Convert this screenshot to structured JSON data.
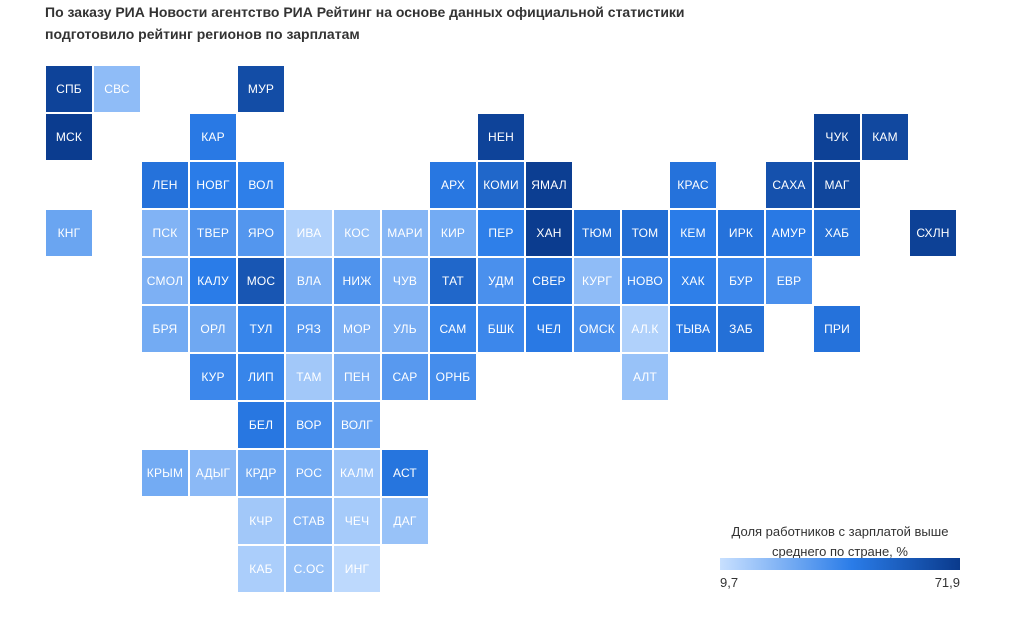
{
  "title": "По заказу РИА Новости агентство РИА Рейтинг на основе данных официальной статистики подготовило рейтинг регионов по зарплатам",
  "legend": {
    "title": "Доля работников с зарплатой выше среднего по стране, %",
    "min_label": "9,7",
    "max_label": "71,9",
    "min": 9.7,
    "max": 71.9,
    "color_low": "#c8e0ff",
    "color_mid": "#2a7ce8",
    "color_high": "#0a3a8c"
  },
  "regions": [
    {
      "label": "СПБ",
      "row": 0,
      "col": 0,
      "value": 68
    },
    {
      "label": "СВС",
      "row": 0,
      "col": 1,
      "value": 22
    },
    {
      "label": "МУР",
      "row": 0,
      "col": 4,
      "value": 64
    },
    {
      "label": "МСК",
      "row": 1,
      "col": 0,
      "value": 71
    },
    {
      "label": "КАР",
      "row": 1,
      "col": 3,
      "value": 45
    },
    {
      "label": "НЕН",
      "row": 1,
      "col": 9,
      "value": 68
    },
    {
      "label": "ЧУК",
      "row": 1,
      "col": 16,
      "value": 69
    },
    {
      "label": "КАМ",
      "row": 1,
      "col": 17,
      "value": 66
    },
    {
      "label": "ЛЕН",
      "row": 2,
      "col": 2,
      "value": 48
    },
    {
      "label": "НОВГ",
      "row": 2,
      "col": 3,
      "value": 44
    },
    {
      "label": "ВОЛ",
      "row": 2,
      "col": 4,
      "value": 43
    },
    {
      "label": "АРХ",
      "row": 2,
      "col": 8,
      "value": 46
    },
    {
      "label": "КОМИ",
      "row": 2,
      "col": 9,
      "value": 53
    },
    {
      "label": "ЯМАЛ",
      "row": 2,
      "col": 10,
      "value": 70
    },
    {
      "label": "КРАС",
      "row": 2,
      "col": 13,
      "value": 48
    },
    {
      "label": "САХА",
      "row": 2,
      "col": 15,
      "value": 62
    },
    {
      "label": "МАГ",
      "row": 2,
      "col": 16,
      "value": 67
    },
    {
      "label": "КНГ",
      "row": 3,
      "col": 0,
      "value": 30
    },
    {
      "label": "ПСК",
      "row": 3,
      "col": 2,
      "value": 25
    },
    {
      "label": "ТВЕР",
      "row": 3,
      "col": 3,
      "value": 36
    },
    {
      "label": "ЯРО",
      "row": 3,
      "col": 4,
      "value": 35
    },
    {
      "label": "ИВА",
      "row": 3,
      "col": 5,
      "value": 15
    },
    {
      "label": "КОС",
      "row": 3,
      "col": 6,
      "value": 20
    },
    {
      "label": "МАРИ",
      "row": 3,
      "col": 7,
      "value": 24
    },
    {
      "label": "КИР",
      "row": 3,
      "col": 8,
      "value": 28
    },
    {
      "label": "ПЕР",
      "row": 3,
      "col": 9,
      "value": 43
    },
    {
      "label": "ХАН",
      "row": 3,
      "col": 10,
      "value": 71
    },
    {
      "label": "ТЮМ",
      "row": 3,
      "col": 11,
      "value": 50
    },
    {
      "label": "ТОМ",
      "row": 3,
      "col": 12,
      "value": 50
    },
    {
      "label": "КЕМ",
      "row": 3,
      "col": 13,
      "value": 44
    },
    {
      "label": "ИРК",
      "row": 3,
      "col": 14,
      "value": 48
    },
    {
      "label": "АМУР",
      "row": 3,
      "col": 15,
      "value": 45
    },
    {
      "label": "ХАБ",
      "row": 3,
      "col": 16,
      "value": 49
    },
    {
      "label": "СХЛН",
      "row": 3,
      "col": 18,
      "value": 69
    },
    {
      "label": "СМОЛ",
      "row": 4,
      "col": 2,
      "value": 26
    },
    {
      "label": "КАЛУ",
      "row": 4,
      "col": 3,
      "value": 44
    },
    {
      "label": "МОС",
      "row": 4,
      "col": 4,
      "value": 60
    },
    {
      "label": "ВЛА",
      "row": 4,
      "col": 5,
      "value": 27
    },
    {
      "label": "НИЖ",
      "row": 4,
      "col": 6,
      "value": 36
    },
    {
      "label": "ЧУВ",
      "row": 4,
      "col": 7,
      "value": 25
    },
    {
      "label": "ТАТ",
      "row": 4,
      "col": 8,
      "value": 53
    },
    {
      "label": "УДМ",
      "row": 4,
      "col": 9,
      "value": 37
    },
    {
      "label": "СВЕР",
      "row": 4,
      "col": 10,
      "value": 48
    },
    {
      "label": "КУРГ",
      "row": 4,
      "col": 11,
      "value": 22
    },
    {
      "label": "НОВО",
      "row": 4,
      "col": 12,
      "value": 40
    },
    {
      "label": "ХАК",
      "row": 4,
      "col": 13,
      "value": 43
    },
    {
      "label": "БУР",
      "row": 4,
      "col": 14,
      "value": 40
    },
    {
      "label": "ЕВР",
      "row": 4,
      "col": 15,
      "value": 37
    },
    {
      "label": "БРЯ",
      "row": 5,
      "col": 2,
      "value": 28
    },
    {
      "label": "ОРЛ",
      "row": 5,
      "col": 3,
      "value": 29
    },
    {
      "label": "ТУЛ",
      "row": 5,
      "col": 4,
      "value": 41
    },
    {
      "label": "РЯЗ",
      "row": 5,
      "col": 5,
      "value": 35
    },
    {
      "label": "МОР",
      "row": 5,
      "col": 6,
      "value": 26
    },
    {
      "label": "УЛЬ",
      "row": 5,
      "col": 7,
      "value": 27
    },
    {
      "label": "САМ",
      "row": 5,
      "col": 8,
      "value": 41
    },
    {
      "label": "БШК",
      "row": 5,
      "col": 9,
      "value": 40
    },
    {
      "label": "ЧЕЛ",
      "row": 5,
      "col": 10,
      "value": 45
    },
    {
      "label": "ОМСК",
      "row": 5,
      "col": 11,
      "value": 37
    },
    {
      "label": "АЛ.К",
      "row": 5,
      "col": 12,
      "value": 15
    },
    {
      "label": "ТЫВА",
      "row": 5,
      "col": 13,
      "value": 46
    },
    {
      "label": "ЗАБ",
      "row": 5,
      "col": 14,
      "value": 49
    },
    {
      "label": "ПРИ",
      "row": 5,
      "col": 16,
      "value": 48
    },
    {
      "label": "КУР",
      "row": 6,
      "col": 3,
      "value": 40
    },
    {
      "label": "ЛИП",
      "row": 6,
      "col": 4,
      "value": 41
    },
    {
      "label": "ТАМ",
      "row": 6,
      "col": 5,
      "value": 18
    },
    {
      "label": "ПЕН",
      "row": 6,
      "col": 6,
      "value": 26
    },
    {
      "label": "САР",
      "row": 6,
      "col": 7,
      "value": 34
    },
    {
      "label": "ОРНБ",
      "row": 6,
      "col": 8,
      "value": 38
    },
    {
      "label": "АЛТ",
      "row": 6,
      "col": 12,
      "value": 20
    },
    {
      "label": "БЕЛ",
      "row": 7,
      "col": 4,
      "value": 46
    },
    {
      "label": "ВОР",
      "row": 7,
      "col": 5,
      "value": 38
    },
    {
      "label": "ВОЛГ",
      "row": 7,
      "col": 6,
      "value": 31
    },
    {
      "label": "КРЫМ",
      "row": 8,
      "col": 2,
      "value": 28
    },
    {
      "label": "АДЫГ",
      "row": 8,
      "col": 3,
      "value": 23
    },
    {
      "label": "КРДР",
      "row": 8,
      "col": 4,
      "value": 29
    },
    {
      "label": "РОС",
      "row": 8,
      "col": 5,
      "value": 28
    },
    {
      "label": "КАЛМ",
      "row": 8,
      "col": 6,
      "value": 19
    },
    {
      "label": "АСТ",
      "row": 8,
      "col": 7,
      "value": 47
    },
    {
      "label": "КЧР",
      "row": 9,
      "col": 4,
      "value": 18
    },
    {
      "label": "СТАВ",
      "row": 9,
      "col": 5,
      "value": 24
    },
    {
      "label": "ЧЕЧ",
      "row": 9,
      "col": 6,
      "value": 17
    },
    {
      "label": "ДАГ",
      "row": 9,
      "col": 7,
      "value": 20
    },
    {
      "label": "КАБ",
      "row": 10,
      "col": 4,
      "value": 16
    },
    {
      "label": "С.ОС",
      "row": 10,
      "col": 5,
      "value": 20
    },
    {
      "label": "ИНГ",
      "row": 10,
      "col": 6,
      "value": 12
    }
  ]
}
